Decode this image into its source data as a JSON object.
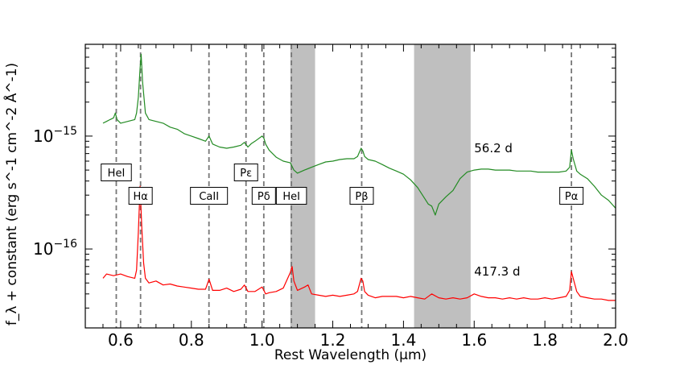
{
  "chart_data": {
    "type": "line",
    "title": "",
    "xlabel": "Rest Wavelength (μm)",
    "ylabel": "f_λ + constant (erg s^-1 cm^-2 Å^-1)",
    "xlim": [
      0.5,
      2.0
    ],
    "ylim": [
      2e-17,
      6.5e-15
    ],
    "yscale": "log",
    "x_ticks": [
      {
        "value": 0.6,
        "label": "0.6"
      },
      {
        "value": 0.8,
        "label": "0.8"
      },
      {
        "value": 1.0,
        "label": "1.0"
      },
      {
        "value": 1.2,
        "label": "1.2"
      },
      {
        "value": 1.4,
        "label": "1.4"
      },
      {
        "value": 1.6,
        "label": "1.6"
      },
      {
        "value": 1.8,
        "label": "1.8"
      },
      {
        "value": 2.0,
        "label": "2.0"
      }
    ],
    "y_ticks": [
      {
        "value": 1e-16,
        "base": "10",
        "exp": "−16"
      },
      {
        "value": 1e-15,
        "base": "10",
        "exp": "−15"
      }
    ],
    "grid": false,
    "shaded_regions": [
      {
        "from": 1.08,
        "to": 1.15,
        "color": "#bfbfbf"
      },
      {
        "from": 1.43,
        "to": 1.59,
        "color": "#bfbfbf"
      }
    ],
    "line_markers": [
      {
        "label": "HeI",
        "x": 0.5876,
        "row": "upper"
      },
      {
        "label": "Hα",
        "x": 0.6563,
        "row": "lower"
      },
      {
        "label": "CaII",
        "x": 0.8498,
        "row": "lower"
      },
      {
        "label": "Pε",
        "x": 0.9546,
        "row": "upper"
      },
      {
        "label": "Pδ",
        "x": 1.0049,
        "row": "lower"
      },
      {
        "label": "HeI",
        "x": 1.083,
        "row": "lower"
      },
      {
        "label": "Pβ",
        "x": 1.2818,
        "row": "lower"
      },
      {
        "label": "Pα",
        "x": 1.8751,
        "row": "lower"
      }
    ],
    "series": [
      {
        "label": "56.2 d",
        "color": "#238b23",
        "label_x": 1.6,
        "label_y": 7.8e-16,
        "x": [
          0.55,
          0.56,
          0.57,
          0.58,
          0.585,
          0.59,
          0.6,
          0.62,
          0.64,
          0.645,
          0.65,
          0.655,
          0.658,
          0.662,
          0.67,
          0.68,
          0.7,
          0.72,
          0.74,
          0.76,
          0.78,
          0.8,
          0.82,
          0.84,
          0.85,
          0.86,
          0.88,
          0.9,
          0.92,
          0.94,
          0.95,
          0.96,
          0.97,
          0.98,
          1.0,
          1.005,
          1.01,
          1.02,
          1.04,
          1.06,
          1.08,
          1.09,
          1.1,
          1.12,
          1.14,
          1.16,
          1.18,
          1.2,
          1.22,
          1.24,
          1.26,
          1.27,
          1.28,
          1.285,
          1.29,
          1.3,
          1.32,
          1.34,
          1.36,
          1.38,
          1.4,
          1.42,
          1.44,
          1.46,
          1.47,
          1.48,
          1.49,
          1.5,
          1.52,
          1.54,
          1.56,
          1.58,
          1.6,
          1.62,
          1.64,
          1.66,
          1.68,
          1.7,
          1.72,
          1.74,
          1.76,
          1.78,
          1.8,
          1.82,
          1.84,
          1.86,
          1.87,
          1.875,
          1.88,
          1.89,
          1.9,
          1.92,
          1.94,
          1.96,
          1.98,
          2.0
        ],
        "y": [
          1.3e-15,
          1.35e-15,
          1.4e-15,
          1.45e-15,
          1.6e-15,
          1.4e-15,
          1.3e-15,
          1.35e-15,
          1.4e-15,
          1.6e-15,
          2.2e-15,
          4e-15,
          5.3e-15,
          3e-15,
          1.6e-15,
          1.4e-15,
          1.35e-15,
          1.3e-15,
          1.2e-15,
          1.15e-15,
          1.05e-15,
          1e-15,
          9.5e-16,
          9e-16,
          1e-15,
          8.5e-16,
          8e-16,
          7.8e-16,
          8e-16,
          8.3e-16,
          8.8e-16,
          8e-16,
          8.6e-16,
          9e-16,
          1e-15,
          9.6e-16,
          8.5e-16,
          7.5e-16,
          6.5e-16,
          6e-16,
          5.8e-16,
          5e-16,
          4.7e-16,
          5e-16,
          5.3e-16,
          5.6e-16,
          5.9e-16,
          6e-16,
          6.2e-16,
          6.3e-16,
          6.3e-16,
          6.6e-16,
          7.8e-16,
          7.4e-16,
          6.6e-16,
          6.2e-16,
          6e-16,
          5.6e-16,
          5.2e-16,
          4.9e-16,
          4.6e-16,
          4.1e-16,
          3.5e-16,
          2.8e-16,
          2.5e-16,
          2.4e-16,
          2e-16,
          2.5e-16,
          2.9e-16,
          3.3e-16,
          4.2e-16,
          4.8e-16,
          5e-16,
          5.1e-16,
          5.1e-16,
          5e-16,
          5e-16,
          5e-16,
          4.9e-16,
          4.9e-16,
          4.9e-16,
          4.8e-16,
          4.8e-16,
          4.8e-16,
          4.8e-16,
          4.9e-16,
          5.3e-16,
          7.5e-16,
          6.3e-16,
          4.9e-16,
          4.6e-16,
          4.2e-16,
          3.6e-16,
          3e-16,
          2.7e-16,
          2.3e-16
        ]
      },
      {
        "label": "417.3 d",
        "color": "#ff0000",
        "label_x": 1.6,
        "label_y": 6.3e-17,
        "x": [
          0.55,
          0.56,
          0.58,
          0.6,
          0.62,
          0.64,
          0.645,
          0.65,
          0.655,
          0.66,
          0.665,
          0.67,
          0.68,
          0.7,
          0.72,
          0.74,
          0.76,
          0.78,
          0.8,
          0.82,
          0.84,
          0.85,
          0.86,
          0.88,
          0.9,
          0.92,
          0.94,
          0.95,
          0.96,
          0.98,
          1.0,
          1.005,
          1.01,
          1.02,
          1.04,
          1.06,
          1.08,
          1.085,
          1.09,
          1.1,
          1.12,
          1.13,
          1.14,
          1.16,
          1.18,
          1.2,
          1.22,
          1.24,
          1.26,
          1.27,
          1.28,
          1.285,
          1.29,
          1.3,
          1.32,
          1.34,
          1.36,
          1.38,
          1.4,
          1.42,
          1.44,
          1.46,
          1.48,
          1.5,
          1.52,
          1.54,
          1.56,
          1.58,
          1.6,
          1.62,
          1.64,
          1.66,
          1.68,
          1.7,
          1.72,
          1.74,
          1.76,
          1.78,
          1.8,
          1.82,
          1.84,
          1.86,
          1.87,
          1.875,
          1.88,
          1.89,
          1.9,
          1.92,
          1.94,
          1.96,
          1.98,
          2.0
        ],
        "y": [
          5.5e-17,
          6e-17,
          5.8e-17,
          6e-17,
          5.7e-17,
          5.5e-17,
          6.5e-17,
          1.4e-16,
          3.6e-16,
          1.5e-16,
          7.5e-17,
          5.5e-17,
          5e-17,
          5.2e-17,
          4.8e-17,
          4.9e-17,
          4.7e-17,
          4.6e-17,
          4.5e-17,
          4.4e-17,
          4.4e-17,
          5.4e-17,
          4.3e-17,
          4.3e-17,
          4.5e-17,
          4.2e-17,
          4.4e-17,
          4.8e-17,
          4.2e-17,
          4.2e-17,
          4.6e-17,
          4.3e-17,
          4e-17,
          4.1e-17,
          4.2e-17,
          4.5e-17,
          6.2e-17,
          7e-17,
          5.2e-17,
          4.3e-17,
          4.6e-17,
          4.8e-17,
          4e-17,
          3.9e-17,
          3.8e-17,
          3.9e-17,
          3.8e-17,
          3.9e-17,
          4e-17,
          4.2e-17,
          5.5e-17,
          5.2e-17,
          4.2e-17,
          3.9e-17,
          3.7e-17,
          3.8e-17,
          3.8e-17,
          3.8e-17,
          3.7e-17,
          3.8e-17,
          3.7e-17,
          3.6e-17,
          4e-17,
          3.7e-17,
          3.6e-17,
          3.7e-17,
          3.6e-17,
          3.7e-17,
          4e-17,
          3.8e-17,
          3.7e-17,
          3.7e-17,
          3.6e-17,
          3.7e-17,
          3.6e-17,
          3.7e-17,
          3.6e-17,
          3.6e-17,
          3.7e-17,
          3.6e-17,
          3.7e-17,
          3.8e-17,
          4.3e-17,
          6.3e-17,
          5.5e-17,
          4.2e-17,
          3.8e-17,
          3.7e-17,
          3.6e-17,
          3.6e-17,
          3.5e-17,
          3.5e-17
        ]
      }
    ]
  }
}
